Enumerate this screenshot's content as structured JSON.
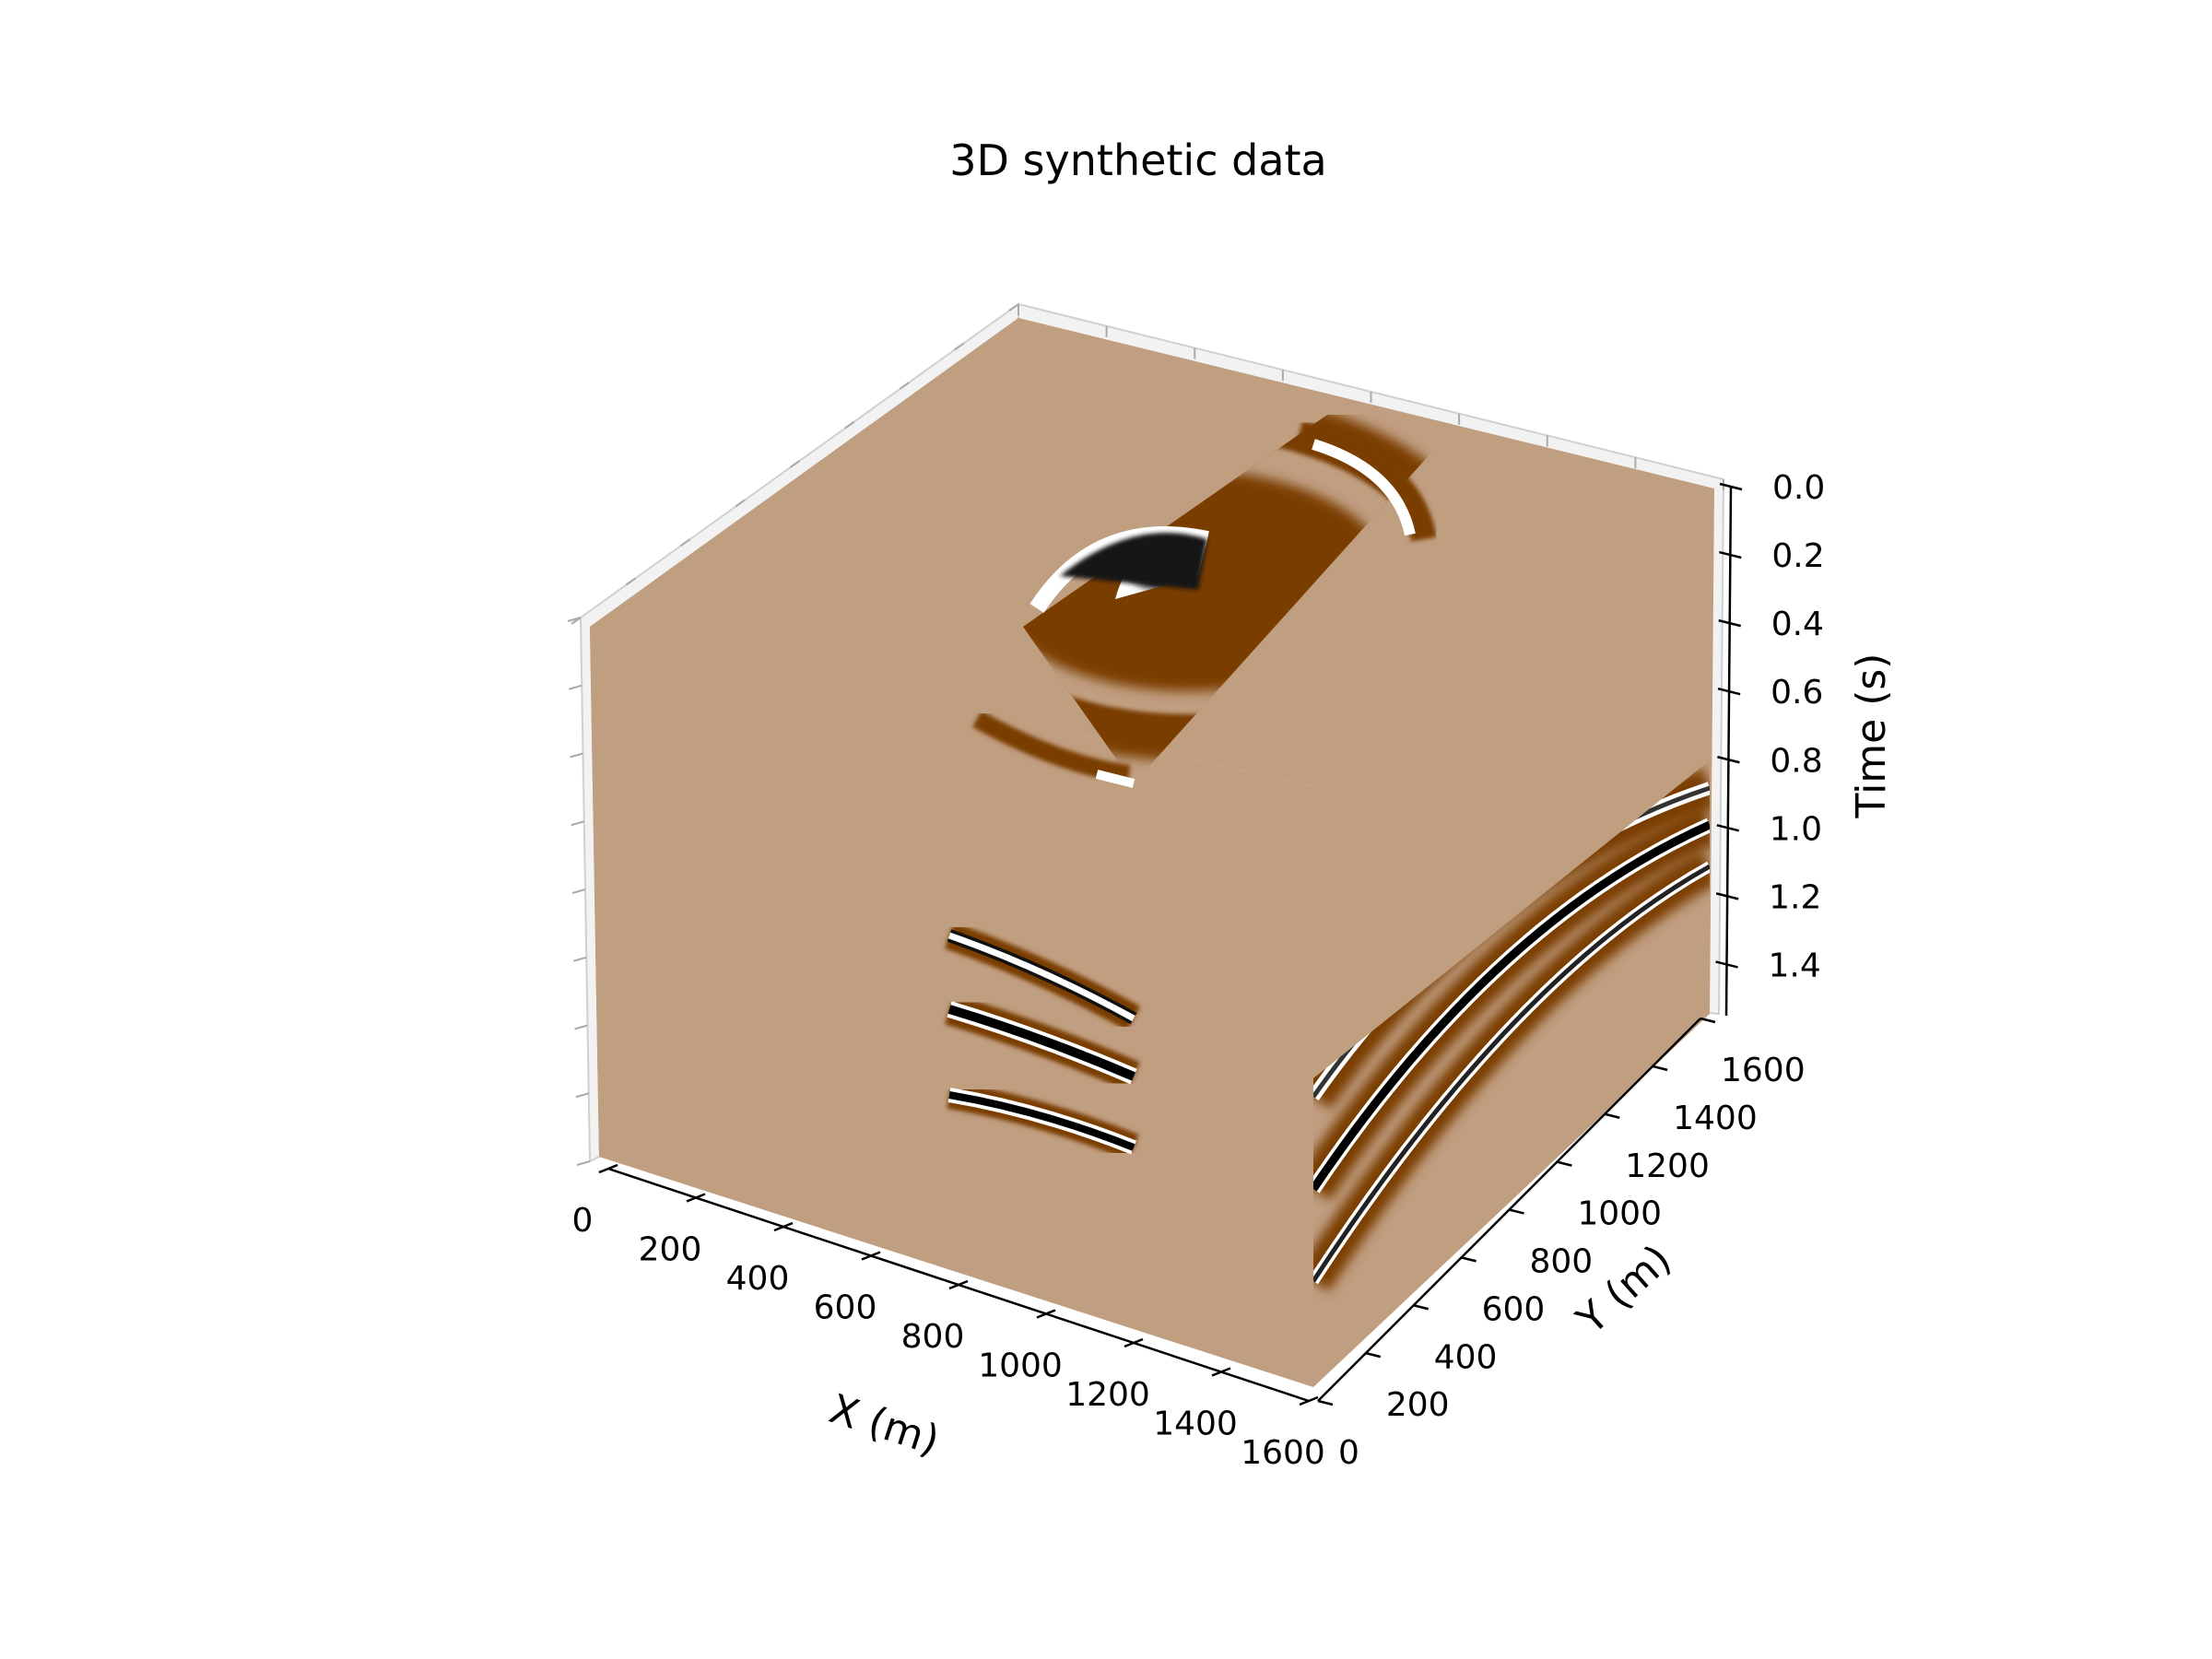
{
  "chart_data": {
    "type": "3d-volume",
    "title": "3D synthetic data",
    "xlabel": "X (m)",
    "ylabel": "Y (m)",
    "zlabel": "Time (s)",
    "xticks": [
      0,
      200,
      400,
      600,
      800,
      1000,
      1200,
      1400,
      1600
    ],
    "yticks": [
      0,
      200,
      400,
      600,
      800,
      1000,
      1200,
      1400,
      1600
    ],
    "zticks": [
      0.0,
      0.2,
      0.4,
      0.6,
      0.8,
      1.0,
      1.2,
      1.4
    ],
    "xtick_labels": [
      "0",
      "200",
      "400",
      "600",
      "800",
      "1000",
      "1200",
      "1400",
      "1600"
    ],
    "ytick_labels": [
      "0",
      "200",
      "400",
      "600",
      "800",
      "1000",
      "1200",
      "1400",
      "1600"
    ],
    "ztick_labels": [
      "0.0",
      "0.2",
      "0.4",
      "0.6",
      "0.8",
      "1.0",
      "1.2",
      "1.4"
    ],
    "xlim": [
      0,
      1600
    ],
    "ylim": [
      0,
      1600
    ],
    "zlim": [
      1.55,
      0.0
    ],
    "z_inverted": true,
    "grid": true,
    "colormap": [
      "#000000",
      "#ffffff",
      "#c09e80",
      "#7a3c00"
    ],
    "background_color": "#c09e80"
  }
}
